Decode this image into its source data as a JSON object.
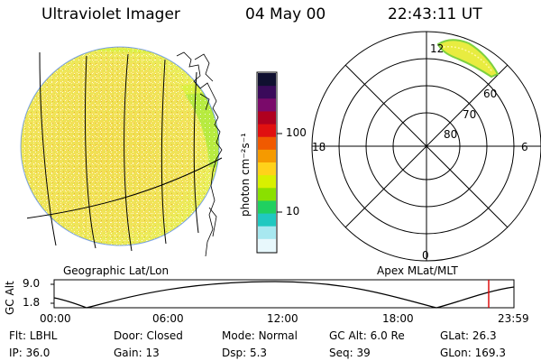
{
  "header": {
    "instrument": "Ultraviolet Imager",
    "date": "04 May 00",
    "time": "22:43:11 UT"
  },
  "image_panel": {
    "caption": "Geographic Lat/Lon"
  },
  "colorbar": {
    "unit_label": "photon cm⁻²s⁻¹",
    "ticks": [
      "100",
      "10"
    ],
    "colors": [
      "#101030",
      "#3a0a5a",
      "#7a0a6a",
      "#b00020",
      "#e01010",
      "#f05a00",
      "#f59a00",
      "#ffd21a",
      "#d8f000",
      "#8ae000",
      "#20d060",
      "#20c8c0",
      "#a8e8f0",
      "#e8f8fc"
    ]
  },
  "polar_panel": {
    "caption": "Apex MLat/MLT",
    "mlt_labels": {
      "top": "12",
      "bottom": "0",
      "left": "18",
      "right": "6"
    },
    "mlat_labels": [
      "60",
      "70",
      "80"
    ]
  },
  "altitude_plot": {
    "ylabel": "GC Alt",
    "yticks": [
      "9.0",
      "1.8"
    ],
    "xticks": [
      "00:00",
      "06:00",
      "12:00",
      "18:00",
      "23:59"
    ],
    "marker_color": "#dd0000"
  },
  "status": [
    [
      {
        "k": "Flt:",
        "v": "LBHL"
      },
      {
        "k": "Door:",
        "v": "Closed"
      },
      {
        "k": "Mode:",
        "v": "Normal"
      },
      {
        "k": "GC Alt:",
        "v": "6.0 Re"
      },
      {
        "k": "GLat:",
        "v": "26.3"
      }
    ],
    [
      {
        "k": "IP:",
        "v": "36.0"
      },
      {
        "k": "Gain:",
        "v": "13"
      },
      {
        "k": "Dsp:",
        "v": "5.3"
      },
      {
        "k": "Seq:",
        "v": "39"
      },
      {
        "k": "GLon:",
        "v": "169.3"
      }
    ]
  ]
}
